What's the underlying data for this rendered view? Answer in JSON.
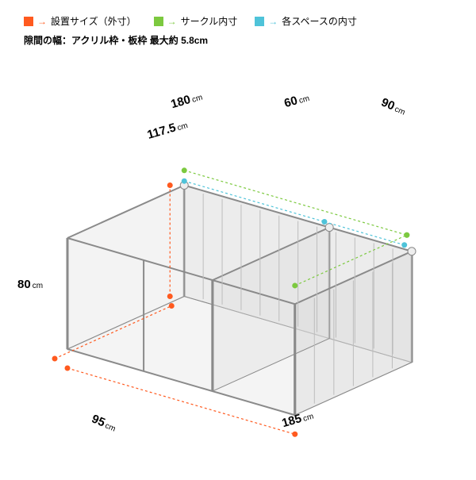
{
  "colors": {
    "outer": "#ff5a1f",
    "circle": "#7cc93f",
    "space": "#4fc3d9",
    "structure": "#8a8a8a",
    "panel": "#dcdcdc",
    "text": "#222222"
  },
  "legend": {
    "outer": "設置サイズ（外寸）",
    "circle": "サークル内寸",
    "space": "各スペースの内寸"
  },
  "subtitle": "隙間の幅：アクリル枠・板枠 最大約 5.8cm",
  "dims": {
    "topCircle": "180",
    "topSpace1": "117.5",
    "topSpace2": "60",
    "rightCircle": "90",
    "leftHeight": "80",
    "bottomDepth": "95",
    "bottomWidth": "185"
  },
  "unit": "cm"
}
